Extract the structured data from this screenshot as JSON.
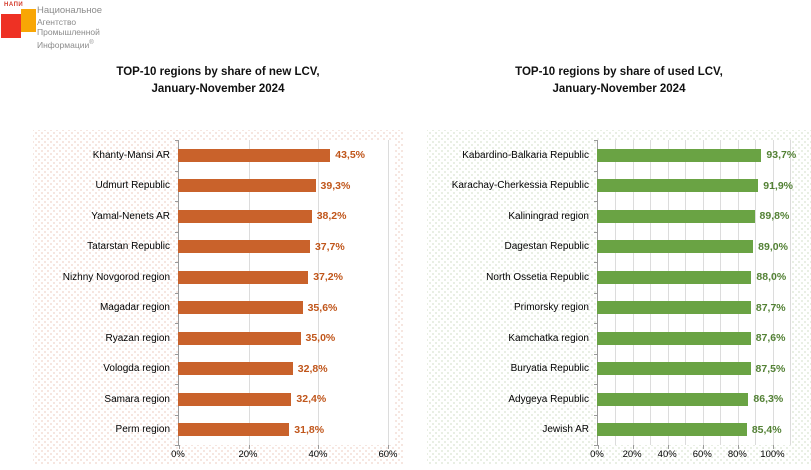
{
  "logo": {
    "brand_small": "НАПИ",
    "text_lines": [
      "Национальное",
      "Агентство",
      "Промышленной",
      "Информации"
    ],
    "registered_mark": "®",
    "colors": {
      "red_square": "#ee3124",
      "orange_square": "#f8a605"
    }
  },
  "chart_data": [
    {
      "type": "bar",
      "orientation": "horizontal",
      "title": "TOP-10 regions by share of new LCV, January-November 2024",
      "title_lines": [
        "TOP-10 regions by share of new LCV,",
        "January-November 2024"
      ],
      "categories": [
        "Khanty-Mansi AR",
        "Udmurt Republic",
        "Yamal-Nenets AR",
        "Tatarstan Republic",
        "Nizhny Novgorod region",
        "Magadar region",
        "Ryazan region",
        "Vologda region",
        "Samara region",
        "Perm region"
      ],
      "values": [
        43.5,
        39.3,
        38.2,
        37.7,
        37.2,
        35.6,
        35.0,
        32.8,
        32.4,
        31.8
      ],
      "value_labels": [
        "43,5%",
        "39,3%",
        "38,2%",
        "37,7%",
        "37,2%",
        "35,6%",
        "35,0%",
        "32,8%",
        "32,4%",
        "31,8%"
      ],
      "xlabel": "",
      "ylabel": "",
      "xlim": [
        0,
        62
      ],
      "gridlines": [
        20,
        40,
        60
      ],
      "ticks": [
        {
          "value": 0,
          "label": "0%"
        },
        {
          "value": 20,
          "label": "20%"
        },
        {
          "value": 40,
          "label": "40%"
        },
        {
          "value": 60,
          "label": "60%"
        }
      ],
      "grid_on": true,
      "legend": "none",
      "bar_color": "#c9622b",
      "label_color": "#c0561b",
      "dot_color": "#f3ded6"
    },
    {
      "type": "bar",
      "orientation": "horizontal",
      "title": "TOP-10 regions by share of used LCV, January-November 2024",
      "title_lines": [
        "TOP-10 regions by share of used LCV,",
        "January-November 2024"
      ],
      "categories": [
        "Kabardino-Balkaria Republic",
        "Karachay-Cherkessia Republic",
        "Kaliningrad region",
        "Dagestan Republic",
        "North Ossetia Republic",
        "Primorsky region",
        "Kamchatka region",
        "Buryatia Republic",
        "Adygeya Republic",
        "Jewish AR"
      ],
      "values": [
        93.7,
        91.9,
        89.8,
        89.0,
        88.0,
        87.7,
        87.6,
        87.5,
        86.3,
        85.4
      ],
      "value_labels": [
        "93,7%",
        "91,9%",
        "89,8%",
        "89,0%",
        "88,0%",
        "87,7%",
        "87,6%",
        "87,5%",
        "86,3%",
        "85,4%"
      ],
      "xlabel": "",
      "ylabel": "",
      "xlim": [
        0,
        110
      ],
      "gridlines": [
        10,
        20,
        30,
        40,
        50,
        60,
        70,
        80,
        90,
        100,
        110
      ],
      "ticks": [
        {
          "value": 0,
          "label": "0%"
        },
        {
          "value": 20,
          "label": "20%"
        },
        {
          "value": 40,
          "label": "40%"
        },
        {
          "value": 60,
          "label": "60%"
        },
        {
          "value": 80,
          "label": "80%"
        },
        {
          "value": 100,
          "label": "100%"
        }
      ],
      "grid_on": true,
      "legend": "none",
      "bar_color": "#6aa344",
      "label_color": "#538135",
      "dot_color": "#e2eadb"
    }
  ]
}
